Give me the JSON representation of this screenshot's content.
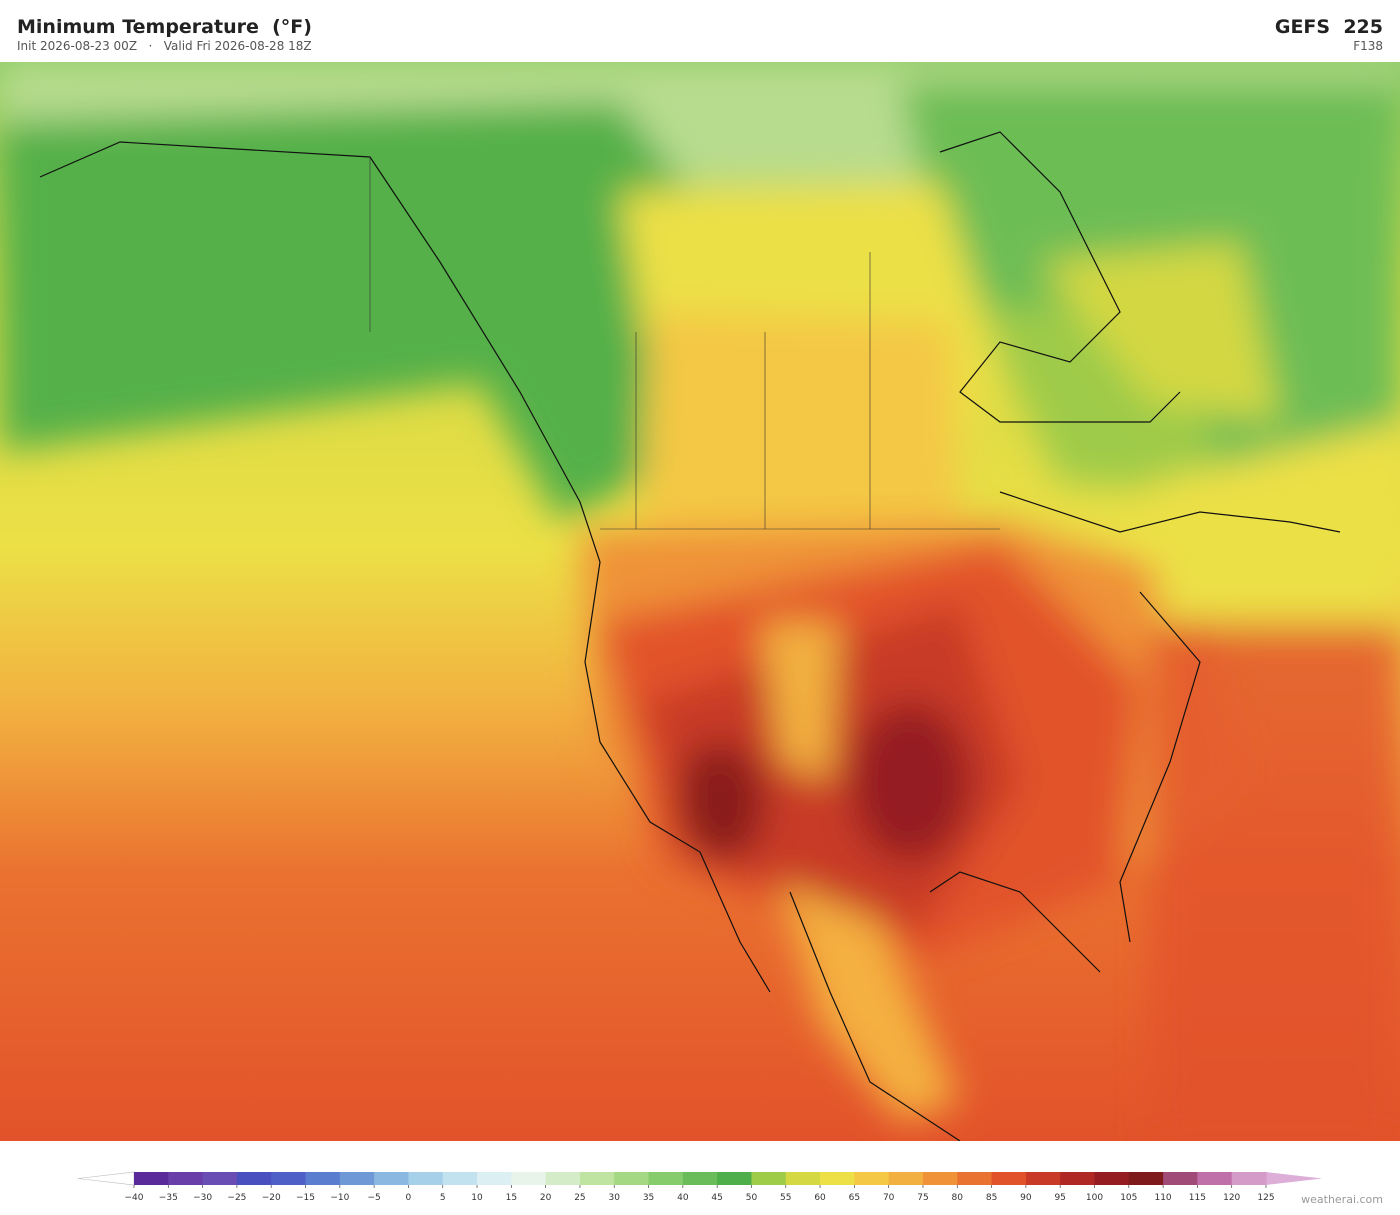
{
  "header": {
    "title": "Minimum Temperature  (°F)",
    "subtitle": "Init 2026-08-23 00Z   ·   Valid Fri 2026-08-28 18Z",
    "model": "GEFS  225",
    "forecast_hour": "F138"
  },
  "colorbar": {
    "ticks": [
      {
        "value": -40,
        "label": "−40"
      },
      {
        "value": -35,
        "label": "−35"
      },
      {
        "value": -30,
        "label": "−30"
      },
      {
        "value": -25,
        "label": "−25"
      },
      {
        "value": -20,
        "label": "−20"
      },
      {
        "value": -15,
        "label": "−15"
      },
      {
        "value": -10,
        "label": "−10"
      },
      {
        "value": -5,
        "label": "−5"
      },
      0,
      5,
      10,
      15,
      20,
      25,
      30,
      35,
      40,
      45,
      50,
      55,
      60,
      65,
      70,
      75,
      80,
      85,
      90,
      95,
      100,
      105,
      110,
      115,
      120,
      125
    ],
    "colors": [
      "#5b2a9a",
      "#6a3ea8",
      "#6a4cb5",
      "#4a4fc0",
      "#4e5fc8",
      "#5a7dd0",
      "#6f98d6",
      "#8ab8e0",
      "#a6d0ea",
      "#c3e2ef",
      "#dceff3",
      "#e8f4ea",
      "#d5ecc8",
      "#bfe3a0",
      "#a4d882",
      "#86cc6c",
      "#6abc5a",
      "#4eaf4a",
      "#9ecb48",
      "#d3d843",
      "#ece046",
      "#f4c844",
      "#f2b040",
      "#ef9238",
      "#ea7230",
      "#e2522a",
      "#c83a26",
      "#b02824",
      "#951c20",
      "#7e1a1c",
      "#a04a78",
      "#c070a8",
      "#d49ac8"
    ],
    "under_color": "#ffffff",
    "over_color": "#dcaed8"
  },
  "watermark": "weatherai.com"
}
